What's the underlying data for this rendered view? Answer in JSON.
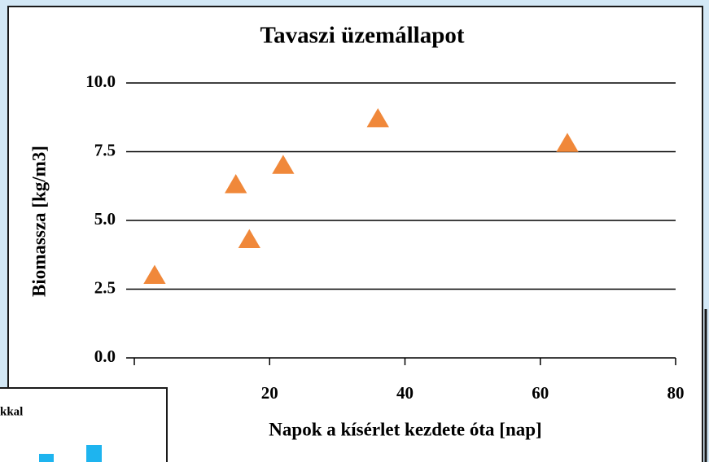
{
  "chart_data": {
    "type": "scatter",
    "title": "Tavaszi üzemállapot",
    "x_label": "Napok a kísérlet kezdete óta [nap]",
    "y_label": "Biomassza [kg/m3]",
    "series": [
      {
        "name": "Tavaszi üzemállapot",
        "color": "#f0883a",
        "marker": "triangle",
        "x": [
          3,
          15,
          17,
          22,
          36,
          64
        ],
        "values": [
          3.0,
          6.3,
          4.3,
          7.0,
          8.7,
          7.8
        ]
      }
    ],
    "xlim": [
      0,
      80
    ],
    "xticks": [
      0,
      20,
      40,
      60,
      80
    ],
    "ylim": [
      0,
      10
    ],
    "yticks": [
      {
        "value": 0,
        "label": "0.0"
      },
      2.5,
      {
        "value": 5,
        "label": "5.0"
      },
      7.5,
      {
        "value": 10,
        "label": "10.0"
      }
    ],
    "grid": true
  },
  "fragment": {
    "title": "kkal"
  }
}
